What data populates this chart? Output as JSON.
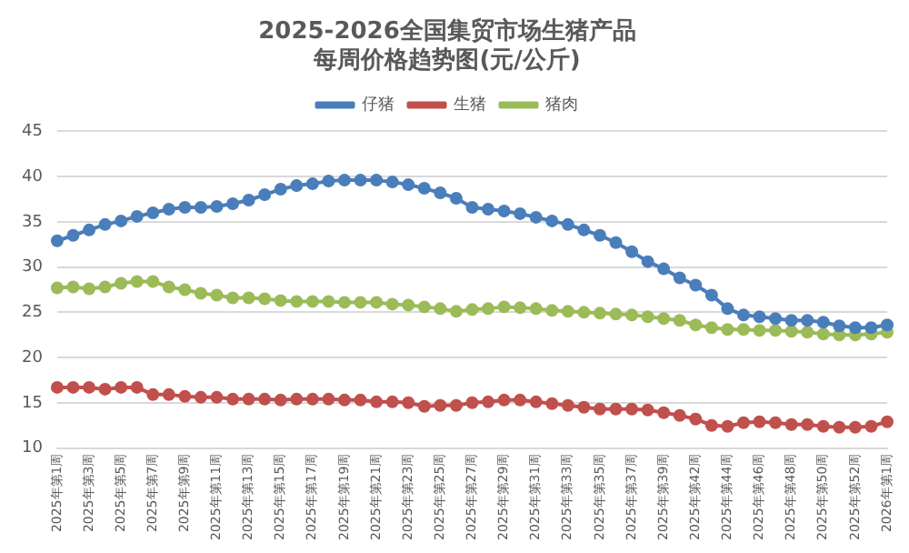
{
  "chart_data": {
    "type": "line",
    "title": "2025-2026全国集贸市场生猪产品",
    "subtitle": "每周价格趋势图(元/公斤)",
    "categories": [
      "2025年第1周",
      null,
      "2025年第3周",
      null,
      "2025年第5周",
      null,
      "2025年第7周",
      null,
      "2025年第9周",
      null,
      "2025年第11周",
      null,
      "2025年第13周",
      null,
      "2025年第15周",
      null,
      "2025年第17周",
      null,
      "2025年第19周",
      null,
      "2025年第21周",
      null,
      "2025年第23周",
      null,
      "2025年第25周",
      null,
      "2025年第27周",
      null,
      "2025年第29周",
      null,
      "2025年第31周",
      null,
      "2025年第33周",
      null,
      "2025年第35周",
      null,
      "2025年第37周",
      null,
      "2025年第39周",
      null,
      "2025年第42周",
      null,
      "2025年第44周",
      null,
      "2025年第46周",
      null,
      "2025年第48周",
      null,
      "2025年第50周",
      null,
      "2025年第52周",
      null,
      "2026年第1周"
    ],
    "series": [
      {
        "name": "仔猪",
        "color": "#4a7ebb",
        "values": [
          32.9,
          33.5,
          34.1,
          34.7,
          35.1,
          35.6,
          36.0,
          36.4,
          36.6,
          36.6,
          36.7,
          37.0,
          37.4,
          38.0,
          38.6,
          39.0,
          39.2,
          39.5,
          39.6,
          39.6,
          39.6,
          39.4,
          39.1,
          38.7,
          38.2,
          37.6,
          36.6,
          36.4,
          36.2,
          35.9,
          35.5,
          35.1,
          34.7,
          34.1,
          33.5,
          32.7,
          31.7,
          30.6,
          29.8,
          28.8,
          28.0,
          26.9,
          25.4,
          24.7,
          24.5,
          24.3,
          24.1,
          24.1,
          23.9,
          23.5,
          23.3,
          23.3,
          23.6
        ]
      },
      {
        "name": "生猪",
        "color": "#c0504d",
        "values": [
          16.7,
          16.7,
          16.7,
          16.5,
          16.7,
          16.7,
          15.9,
          15.9,
          15.7,
          15.6,
          15.6,
          15.4,
          15.4,
          15.4,
          15.3,
          15.4,
          15.4,
          15.4,
          15.3,
          15.3,
          15.1,
          15.1,
          15.0,
          14.6,
          14.7,
          14.7,
          15.0,
          15.1,
          15.3,
          15.3,
          15.1,
          14.9,
          14.7,
          14.5,
          14.3,
          14.3,
          14.3,
          14.2,
          13.9,
          13.6,
          13.2,
          12.5,
          12.4,
          12.8,
          12.9,
          12.8,
          12.6,
          12.6,
          12.4,
          12.3,
          12.3,
          12.4,
          12.9
        ]
      },
      {
        "name": "猪肉",
        "color": "#9bbb59",
        "values": [
          27.7,
          27.8,
          27.6,
          27.8,
          28.2,
          28.4,
          28.4,
          27.8,
          27.5,
          27.1,
          26.9,
          26.6,
          26.6,
          26.5,
          26.3,
          26.2,
          26.2,
          26.2,
          26.1,
          26.1,
          26.1,
          25.9,
          25.8,
          25.6,
          25.4,
          25.1,
          25.3,
          25.4,
          25.6,
          25.5,
          25.4,
          25.2,
          25.1,
          25.0,
          24.9,
          24.8,
          24.7,
          24.5,
          24.3,
          24.1,
          23.6,
          23.3,
          23.1,
          23.1,
          23.0,
          23.0,
          22.9,
          22.8,
          22.6,
          22.5,
          22.5,
          22.6,
          22.8
        ]
      }
    ],
    "ylim": [
      10,
      45
    ],
    "yticks": [
      10,
      15,
      20,
      25,
      30,
      35,
      40,
      45
    ],
    "grid": "y",
    "legend": "top",
    "marker": "circle",
    "line_style": "solid"
  }
}
